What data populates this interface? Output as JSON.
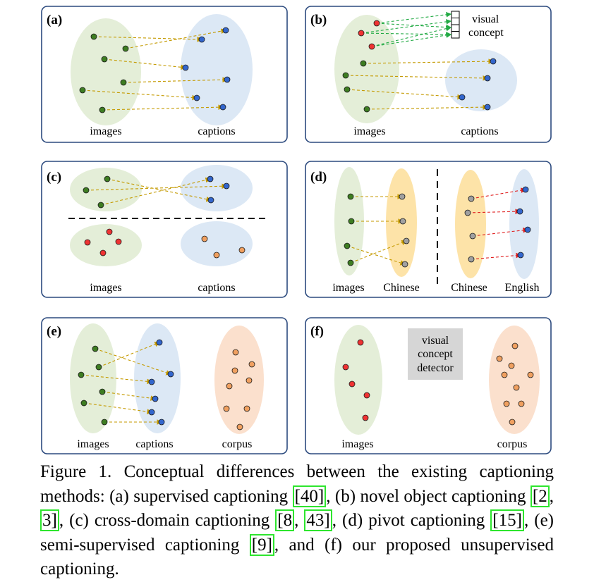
{
  "colors": {
    "panel_border": "#2c4a7e",
    "image_ellipse": "#e4eed8",
    "caption_ellipse": "#dce8f5",
    "chinese_ellipse": "#fde3a8",
    "corpus_ellipse": "#fbe0cd",
    "green_node": "#3e7d22",
    "blue_node": "#3366cc",
    "red_node": "#ee3333",
    "orange_node": "#f0a060",
    "gray_node": "#a0a0a0",
    "gold_arrow": "#c49a00",
    "green_arrow": "#22aa44",
    "red_arrow": "#e02020",
    "detector_box": "#d6d6d6"
  },
  "panels": {
    "a": {
      "tag": "(a)",
      "left_label": "images",
      "right_label": "captions"
    },
    "b": {
      "tag": "(b)",
      "left_label": "images",
      "right_label": "captions",
      "concept_line1": "visual",
      "concept_line2": "concept"
    },
    "c": {
      "tag": "(c)",
      "left_label": "images",
      "right_label": "captions"
    },
    "d": {
      "tag": "(d)",
      "label1": "images",
      "label2": "Chinese",
      "label3": "Chinese",
      "label4": "English"
    },
    "e": {
      "tag": "(e)",
      "label1": "images",
      "label2": "captions",
      "label3": "corpus"
    },
    "f": {
      "tag": "(f)",
      "left_label": "images",
      "right_label": "corpus",
      "detector_line1": "visual",
      "detector_line2": "concept",
      "detector_line3": "detector"
    }
  },
  "caption": {
    "t1": "Figure 1. Conceptual differences between the existing captioning methods: (a) supervised captioning ",
    "r1": "[40]",
    "t2": ", (b) novel object captioning ",
    "r2a": "[2",
    "t3": ", ",
    "r2b": "3]",
    "t4": ", (c) cross-domain captioning ",
    "r3a": "[8",
    "t5": ", ",
    "r3b": "43]",
    "t6": ", (d) pivot captioning ",
    "r4": "[15]",
    "t7": ", (e) semi-supervised captioning ",
    "r5": "[9]",
    "t8": ", and (f) our proposed unsupervised captioning."
  }
}
